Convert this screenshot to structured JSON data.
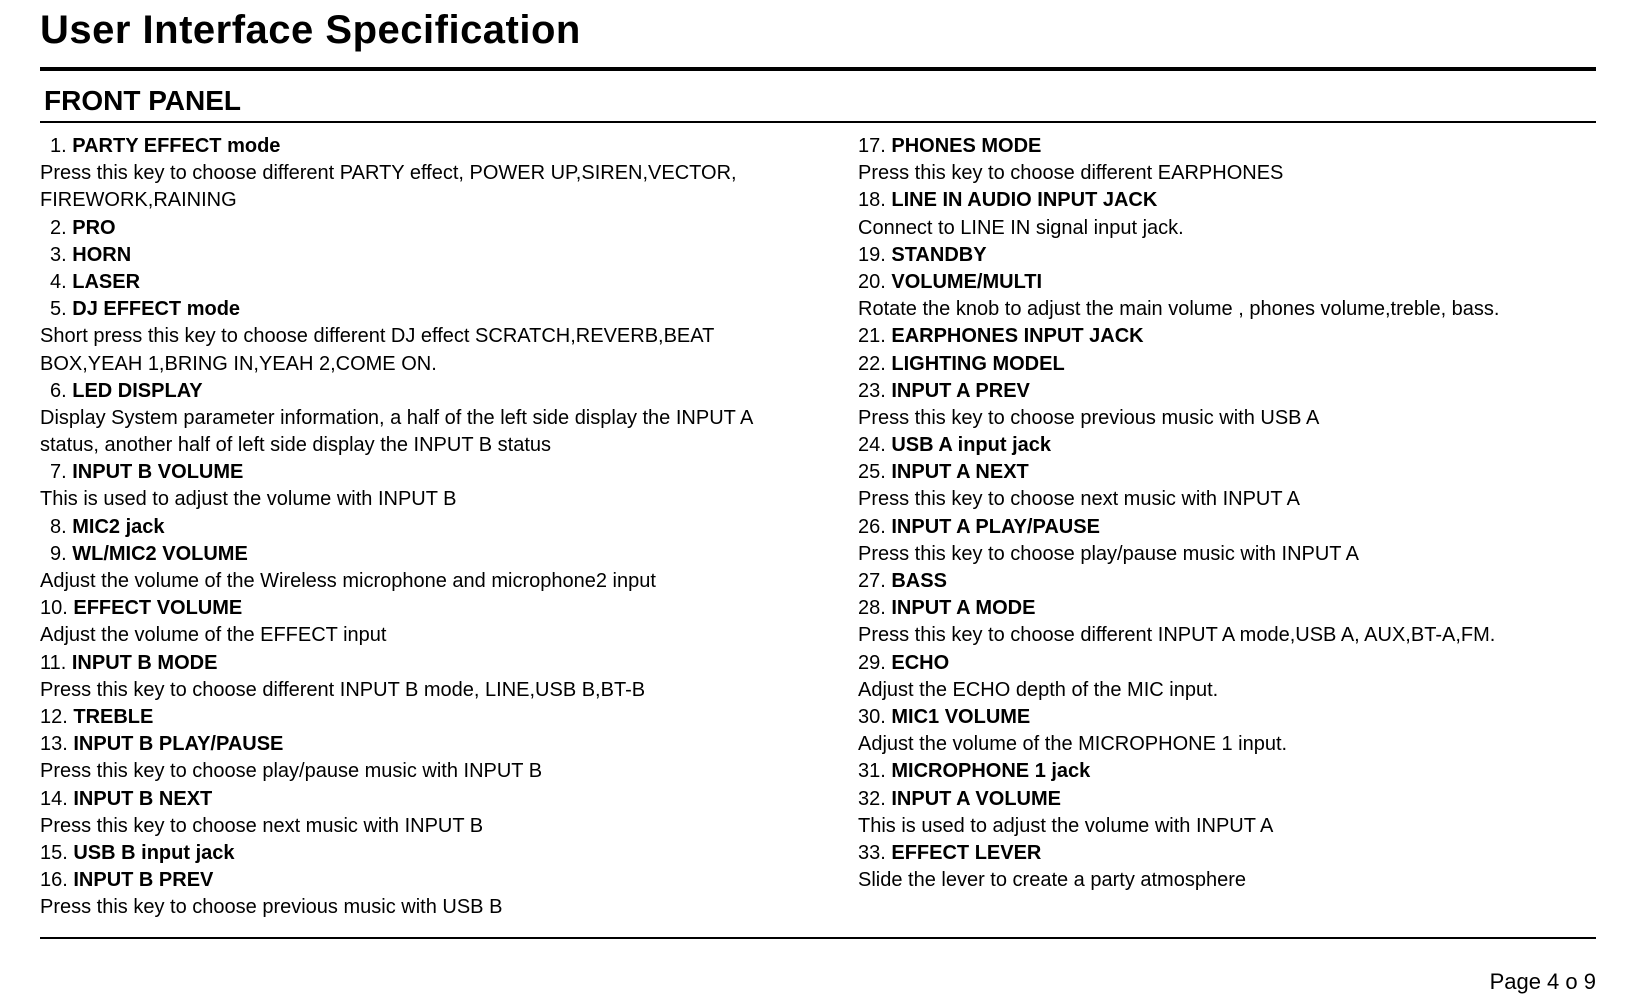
{
  "page": {
    "title": "User Interface Specification",
    "section": "FRONT PANEL",
    "page_number": "Page 4 o 9",
    "colors": {
      "text": "#000000",
      "background": "#ffffff",
      "rule": "#000000"
    },
    "typography": {
      "title_fontsize_pt": 30,
      "section_fontsize_pt": 21,
      "body_fontsize_pt": 15,
      "page_number_fontsize_pt": 17,
      "font_family": "Arial"
    }
  },
  "left": [
    {
      "num": "1.",
      "pad": true,
      "title": "PARTY EFFECT mode",
      "desc": "Press this key to choose different PARTY effect, POWER UP,SIREN,VECTOR, FIREWORK,RAINING"
    },
    {
      "num": "2.",
      "pad": true,
      "title": "PRO",
      "desc": ""
    },
    {
      "num": "3.",
      "pad": true,
      "title": "HORN",
      "desc": ""
    },
    {
      "num": "4.",
      "pad": true,
      "title": "LASER",
      "desc": ""
    },
    {
      "num": "5.",
      "pad": true,
      "title": "DJ EFFECT mode",
      "desc": "Short press this key to choose different DJ effect SCRATCH,REVERB,BEAT BOX,YEAH 1,BRING IN,YEAH 2,COME ON."
    },
    {
      "num": "  6.",
      "pad": true,
      "title": "LED DISPLAY",
      "desc": "Display System parameter information, a half of the left side display the INPUT A status, another half of left side display the INPUT B status"
    },
    {
      "num": "7.",
      "pad": true,
      "title": "INPUT B VOLUME",
      "desc": "This is used to adjust the volume  with INPUT B"
    },
    {
      "num": "8.",
      "pad": true,
      "title": "MIC2 jack",
      "desc": ""
    },
    {
      "num": "9.",
      "pad": true,
      "title": "WL/MIC2  VOLUME",
      "desc": "Adjust the volume of the Wireless microphone and microphone2 input"
    },
    {
      "num": "10.",
      "pad": false,
      "title": "EFFECT VOLUME",
      "desc": "Adjust the volume of the EFFECT input"
    },
    {
      "num": "11.",
      "pad": false,
      "title": "INPUT B MODE",
      "desc": "Press this key to choose different INPUT B mode, LINE,USB B,BT-B"
    },
    {
      "num": "12.",
      "pad": false,
      "title": "TREBLE",
      "desc": ""
    },
    {
      "num": "13.",
      "pad": false,
      "title": "INPUT B PLAY/PAUSE",
      "desc": "Press this key to choose play/pause music with INPUT B"
    },
    {
      "num": "14.",
      "pad": false,
      "title": "INPUT B  NEXT",
      "desc": "Press this key to choose next music with INPUT B"
    },
    {
      "num": "15.",
      "pad": false,
      "title": "USB B input jack",
      "desc": ""
    },
    {
      "num": "16.",
      "pad": false,
      "title": "INPUT B  PREV",
      "desc": "Press this key to choose previous music with USB B"
    }
  ],
  "right": [
    {
      "num": "17.",
      "title": "PHONES MODE",
      "desc": "Press this key to choose different EARPHONES"
    },
    {
      "num": "18.",
      "title": "LINE IN AUDIO INPUT JACK",
      "desc": "Connect to LINE IN signal input jack."
    },
    {
      "num": "19.",
      "title": "STANDBY",
      "desc": ""
    },
    {
      "num": "20.",
      "title": "VOLUME/MULTI",
      "desc": "Rotate the knob to adjust the main volume , phones volume,treble, bass."
    },
    {
      "num": "21.",
      "title": "EARPHONES INPUT JACK",
      "desc": ""
    },
    {
      "num": "22.",
      "title": "LIGHTING MODEL",
      "desc": ""
    },
    {
      "num": "23.",
      "title": "INPUT A  PREV",
      "desc": "Press this key to choose previous music with USB A"
    },
    {
      "num": "24.",
      "title": "USB A input jack",
      "desc": ""
    },
    {
      "num": "25.",
      "title": "INPUT A  NEXT",
      "desc": "Press this key to choose next music with INPUT A"
    },
    {
      "num": "26.",
      "title": "INPUT A PLAY/PAUSE",
      "desc": "Press this key to choose play/pause music with INPUT A"
    },
    {
      "num": "27.",
      "title": "BASS",
      "desc": ""
    },
    {
      "num": "28.",
      "title": "INPUT A MODE",
      "desc": "Press this key to choose different INPUT A mode,USB A, AUX,BT-A,FM."
    },
    {
      "num": "29.",
      "title": "ECHO",
      "desc": "Adjust the ECHO depth of the MIC input."
    },
    {
      "num": "30.",
      "title": "MIC1 VOLUME",
      "desc": "Adjust the volume of the MICROPHONE 1 input."
    },
    {
      "num": "31.",
      "title": "MICROPHONE 1 jack",
      "desc": ""
    },
    {
      "num": "32.",
      "title": "INPUT A VOLUME",
      "desc": "This is used to adjust the volume  with INPUT A"
    },
    {
      "num": "33.",
      "title": "EFFECT LEVER",
      "desc": "Slide the lever to create a party atmosphere"
    }
  ]
}
